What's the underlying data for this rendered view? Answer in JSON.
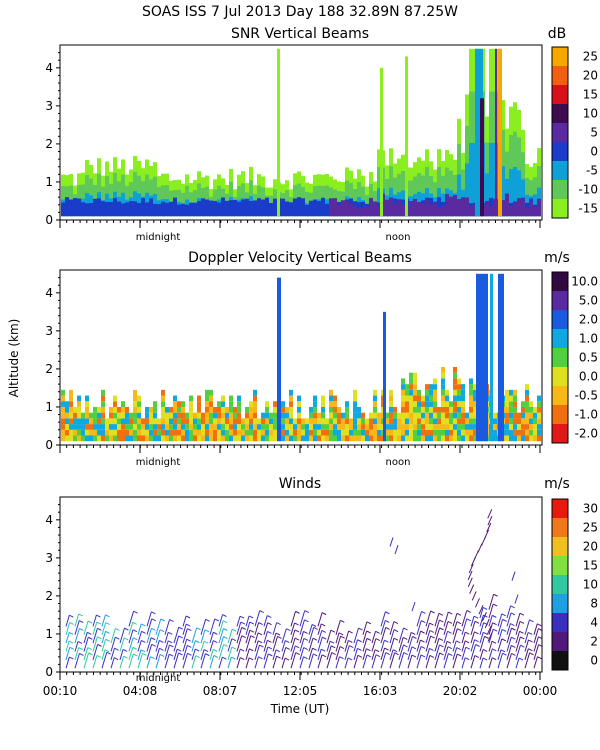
{
  "header": {
    "title": "SOAS ISS    7 Jul 2013 Day 188 32.89N  87.25W"
  },
  "y_axis_label": "Altitude (km)",
  "x_axis_label": "Time (UT)",
  "x_tick_labels": [
    "00:10",
    "04:08",
    "08:07",
    "12:05",
    "16:03",
    "20:02",
    "00:00"
  ],
  "panel_time_markers": [
    "midnight",
    "noon"
  ],
  "chart_data": [
    {
      "type": "heatmap",
      "title": "SNR Vertical Beams",
      "unit": "dB",
      "ylim": [
        0,
        4.6
      ],
      "y_ticks": [
        "0",
        "1",
        "2",
        "3",
        "4"
      ],
      "colorbar_labels": [
        "25",
        "20",
        "15",
        "10",
        "5",
        "0",
        "-5",
        "-10",
        "-15"
      ],
      "colorbar_colors": [
        "#f7a800",
        "#f06010",
        "#d8101a",
        "#400a50",
        "#5a2aa0",
        "#1a3cc8",
        "#10a0d8",
        "#60c858",
        "#8aee20"
      ]
    },
    {
      "type": "heatmap",
      "title": "Doppler Velocity Vertical Beams",
      "unit": "m/s",
      "ylim": [
        0,
        4.6
      ],
      "y_ticks": [
        "0",
        "1",
        "2",
        "3",
        "4"
      ],
      "colorbar_labels": [
        "10.0",
        "5.0",
        "2.0",
        "1.0",
        "0.5",
        "0.0",
        "-0.5",
        "-1.0",
        "-2.0"
      ],
      "colorbar_colors": [
        "#300a40",
        "#5a2aa0",
        "#1a5ae0",
        "#10a8e0",
        "#50d040",
        "#e0e020",
        "#f8b818",
        "#f07010",
        "#e01818"
      ]
    },
    {
      "type": "scatter",
      "title": "Winds",
      "unit": "m/s",
      "ylim": [
        0,
        4.6
      ],
      "y_ticks": [
        "0",
        "1",
        "2",
        "3",
        "4"
      ],
      "colorbar_labels": [
        "30",
        "25",
        "20",
        "15",
        "10",
        "8",
        "4",
        "2",
        "0"
      ],
      "colorbar_colors": [
        "#e81a10",
        "#f07818",
        "#f0c020",
        "#80e040",
        "#30c8a0",
        "#20a0e0",
        "#3a30c0",
        "#501878",
        "#101010"
      ]
    }
  ]
}
